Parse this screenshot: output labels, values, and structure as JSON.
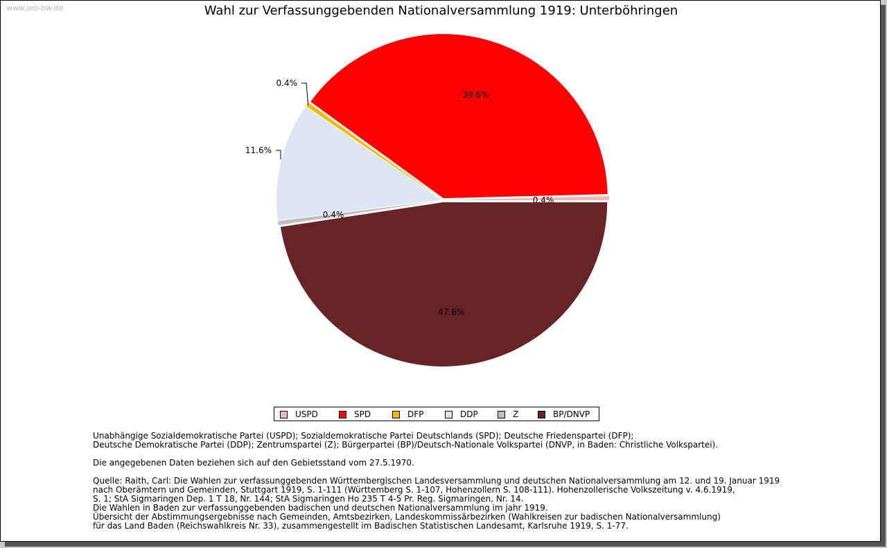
{
  "watermark": "www.leo-bw.de",
  "chart_data": {
    "type": "pie",
    "title": "Wahl zur Verfassunggebenden Nationalversammlung 1919: Unterböhringen",
    "slices": [
      {
        "name": "USPD",
        "value": 0.4,
        "label": "0.4%",
        "color": "#f2b8b8"
      },
      {
        "name": "SPD",
        "value": 39.6,
        "label": "39.6%",
        "color": "#ff0000"
      },
      {
        "name": "DFP",
        "value": 0.4,
        "label": "0.4%",
        "color": "#f5b800"
      },
      {
        "name": "DDP",
        "value": 11.6,
        "label": "11.6%",
        "color": "#dce5f2"
      },
      {
        "name": "Z",
        "value": 0.4,
        "label": "0.4%",
        "color": "#bebebe"
      },
      {
        "name": "BP/DNVP",
        "value": 47.6,
        "label": "47.6%",
        "color": "#662427"
      }
    ],
    "legend_position": "bottom"
  },
  "notes": {
    "line1": "Unabhängige Sozialdemokratische Partei (USPD); Sozialdemokratische Partei Deutschlands (SPD); Deutsche Friedenspartei (DFP);",
    "line2": "Deutsche Demokratische Partei (DDP); Zentrumspartei (Z); Bürgerpartei (BP)/Deutsch-Nationale Volkspartei (DNVP, in Baden: Christliche Volkspartei).",
    "line3": "Die angegebenen Daten beziehen sich auf den Gebietsstand vom 27.5.1970.",
    "line4": "Quelle: Raith, Carl: Die Wahlen zur verfassunggebenden Württembergischen Landesversammlung und deutschen Nationalversammlung am 12. und 19. Januar 1919",
    "line5": "nach Oberämtern und Gemeinden, Stuttgart 1919, S. 1-111 (Württemberg S. 1-107, Hohenzollern S. 108-111). Hohenzollerische Volkszeitung v. 4.6.1919,",
    "line6": "S. 1; StA Sigmaringen Dep. 1 T 18, Nr. 144; StA Sigmaringen Ho 235 T 4-5 Pr. Reg. Sigmaringen, Nr. 14.",
    "line7": "Die Wahlen in Baden zur verfassunggebenden badischen und deutschen Nationalversammlung im jahr 1919.",
    "line8": "Übersicht der Abstimmungsergebnisse nach Gemeinden, Amtsbezirken, Landeskommissärbezirken (Wahlkreisen zur badischen Nationalversammlung)",
    "line9": "für das Land Baden (Reichswahlkreis Nr. 33), zusammengestellt im Badischen Statistischen Landesamt, Karlsruhe 1919, S. 1-77."
  }
}
